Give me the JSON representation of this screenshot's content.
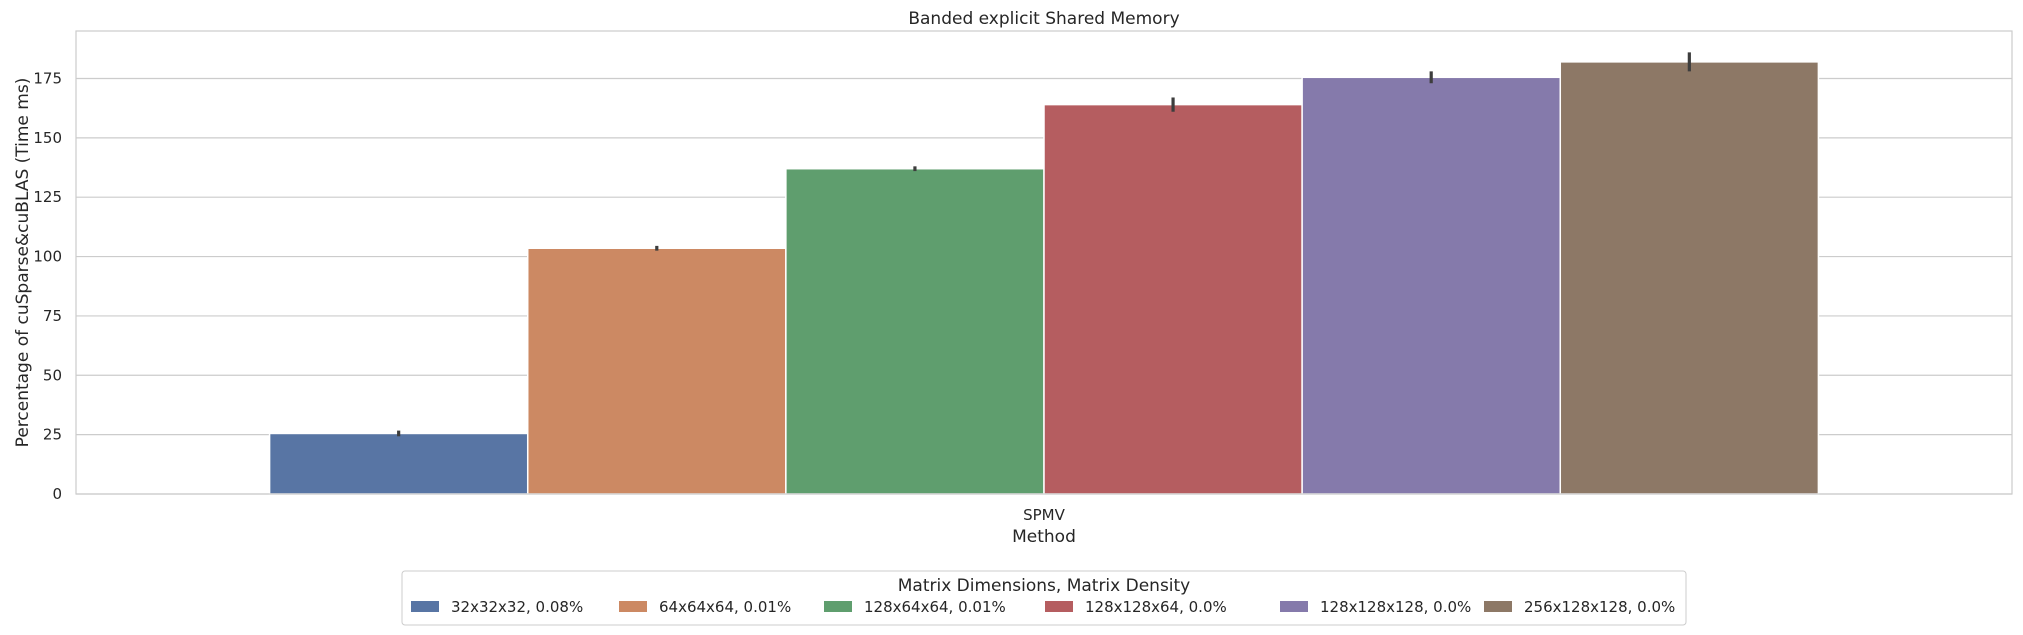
{
  "chart_data": {
    "type": "bar",
    "title": "Banded explicit Shared Memory",
    "xlabel": "Method",
    "ylabel": "Percentage of cuSparse&cuBLAS (Time ms)",
    "categories": [
      "SPMV"
    ],
    "ylim": [
      0,
      195
    ],
    "yticks": [
      0,
      25,
      50,
      75,
      100,
      125,
      150,
      175
    ],
    "grid": true,
    "legend": {
      "title": "Matrix Dimensions, Matrix Density",
      "placement": "bottom-center"
    },
    "series": [
      {
        "name": "32x32x32, 0.08%",
        "color": "#5875a4",
        "values": [
          25.5
        ],
        "error": [
          1.2
        ]
      },
      {
        "name": "64x64x64, 0.01%",
        "color": "#cc8963",
        "values": [
          103.5
        ],
        "error": [
          1.0
        ]
      },
      {
        "name": "128x64x64, 0.01%",
        "color": "#5f9e6e",
        "values": [
          137.0
        ],
        "error": [
          1.0
        ]
      },
      {
        "name": "128x128x64, 0.0%",
        "color": "#b55d60",
        "values": [
          164.0
        ],
        "error": [
          3.0
        ]
      },
      {
        "name": "128x128x128, 0.0%",
        "color": "#857aab",
        "values": [
          175.5
        ],
        "error": [
          2.5
        ]
      },
      {
        "name": "256x128x128, 0.0%",
        "color": "#8d7866",
        "values": [
          182.0
        ],
        "error": [
          4.0
        ]
      }
    ]
  }
}
